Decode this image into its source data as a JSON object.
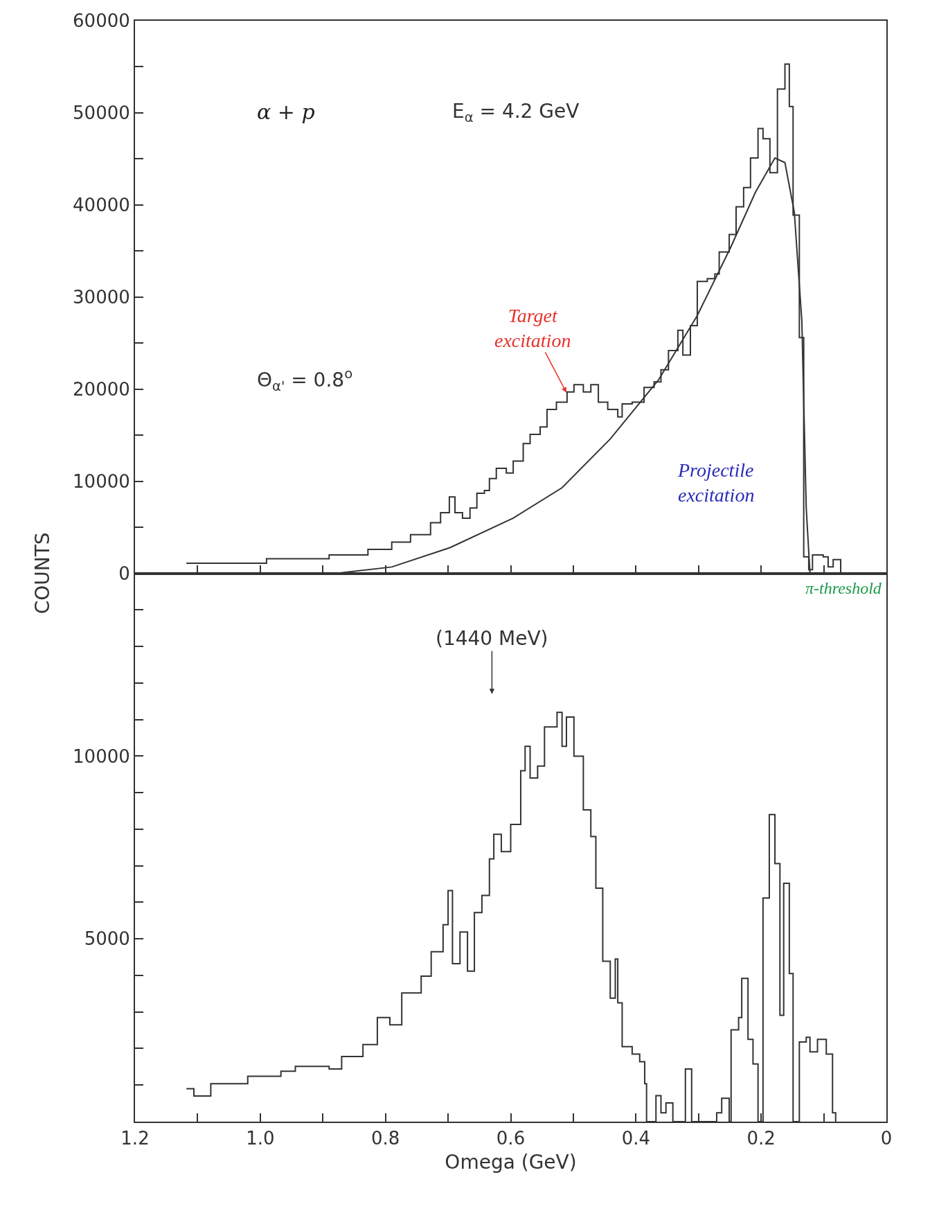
{
  "chart_data": [
    {
      "type": "step",
      "ylabel": "COUNTS",
      "xlim": [
        1.2,
        0
      ],
      "xticks": [
        1.2,
        1.1,
        1,
        0.9,
        0.8,
        0.7,
        0.6,
        0.5,
        0.4,
        0.3,
        0.2,
        0.1,
        0
      ],
      "tick_labels": "y",
      "ylim": [
        0,
        60000
      ],
      "yticks": [
        0,
        {
          "value": 5000,
          "label": null
        },
        10000,
        {
          "value": 15000,
          "label": null
        },
        20000,
        {
          "value": 25000,
          "label": null
        },
        30000,
        {
          "value": 35000,
          "label": null
        },
        40000,
        {
          "value": 45000,
          "label": null
        },
        50000,
        {
          "value": 55000,
          "label": null
        },
        60000
      ],
      "annotations": [
        "α + p",
        "E$_{α}$ = 4.2 GeV",
        "Θ$_{α'}$ = 0.8$^{o}$",
        {
          "text": "Target excitation",
          "x": 0.51,
          "y": 19500
        },
        "Projectile excitation",
        "π-threshold"
      ],
      "series": [
        {
          "color": "#333333",
          "x": [
            1.118,
            0.99,
            0.89,
            0.828,
            0.79,
            0.76,
            0.728,
            0.712,
            0.698,
            0.689,
            0.677,
            0.665,
            0.654,
            0.642,
            0.634,
            0.623,
            0.607,
            0.596,
            0.58,
            0.569,
            0.553,
            0.542,
            0.527,
            0.51,
            0.499,
            0.484,
            0.472,
            0.46,
            0.445,
            0.429,
            0.422,
            0.406,
            0.387,
            0.371,
            0.36,
            0.348,
            0.333,
            0.325,
            0.313,
            0.302,
            0.286,
            0.274,
            0.267,
            0.251,
            0.24,
            0.228,
            0.217,
            0.205,
            0.197,
            0.186,
            0.174,
            0.162,
            0.155,
            0.149,
            0.139,
            0.132,
            0.124,
            0.118,
            0.101,
            0.093,
            0.085,
            0.073
          ],
          "values": [
            1100,
            1600,
            2000,
            2600,
            3400,
            4200,
            5500,
            6600,
            8300,
            6600,
            6000,
            7100,
            8700,
            9000,
            10300,
            11400,
            10900,
            12200,
            14100,
            15100,
            15900,
            17800,
            18600,
            19700,
            20500,
            19700,
            20500,
            18600,
            17800,
            17000,
            18400,
            18600,
            20200,
            20800,
            22100,
            24200,
            26400,
            23700,
            26900,
            31700,
            32000,
            32500,
            34900,
            36800,
            39800,
            41900,
            45100,
            48300,
            47200,
            43500,
            52600,
            55300,
            50700,
            38900,
            25600,
            1800,
            400,
            2000,
            1800,
            700,
            1500,
            0
          ]
        },
        {
          "type": "line",
          "color": "#333333",
          "x": [
            0.88,
            0.79,
            0.697,
            0.596,
            0.518,
            0.441,
            0.364,
            0.302,
            0.248,
            0.209,
            0.178,
            0.162,
            0.147,
            0.135,
            0.128,
            0.122
          ],
          "values": [
            0,
            700,
            2800,
            6000,
            9300,
            14600,
            21000,
            28000,
            35500,
            41400,
            45100,
            44600,
            39200,
            27400,
            7100,
            0
          ]
        }
      ]
    },
    {
      "type": "step",
      "xlabel": "Omega (GeV)",
      "xlim": [
        1.2,
        0
      ],
      "xticks": [
        1.2,
        {
          "value": 1.1,
          "label": null
        },
        {
          "value": 1,
          "label": "1.0"
        },
        {
          "value": 0.9,
          "label": null
        },
        0.8,
        {
          "value": 0.7,
          "label": null
        },
        0.6,
        {
          "value": 0.5,
          "label": null
        },
        0.4,
        {
          "value": 0.3,
          "label": null
        },
        0.2,
        {
          "value": 0.1,
          "label": null
        },
        0
      ],
      "ylim": [
        0,
        15000
      ],
      "yticks": [
        {
          "value": 0,
          "label": null
        },
        {
          "value": 1000,
          "label": null
        },
        {
          "value": 2000,
          "label": null
        },
        {
          "value": 3000,
          "label": null
        },
        {
          "value": 4000,
          "label": null
        },
        5000,
        {
          "value": 6000,
          "label": null
        },
        {
          "value": 7000,
          "label": null
        },
        {
          "value": 8000,
          "label": null
        },
        {
          "value": 9000,
          "label": null
        },
        10000,
        {
          "value": 11000,
          "label": null
        },
        {
          "value": 12000,
          "label": null
        },
        {
          "value": 13000,
          "label": null
        },
        {
          "value": 14000,
          "label": null
        }
      ],
      "annotations": [
        "(1440 MeV)"
      ],
      "series": [
        {
          "color": "#333333",
          "x": [
            1.118,
            1.106,
            1.079,
            1.02,
            0.967,
            0.944,
            0.89,
            0.87,
            0.836,
            0.813,
            0.793,
            0.774,
            0.743,
            0.727,
            0.708,
            0.7,
            0.693,
            0.681,
            0.669,
            0.658,
            0.646,
            0.634,
            0.627,
            0.615,
            0.6,
            0.584,
            0.577,
            0.569,
            0.557,
            0.546,
            0.526,
            0.518,
            0.511,
            0.499,
            0.484,
            0.472,
            0.464,
            0.453,
            0.441,
            0.433,
            0.429,
            0.422,
            0.406,
            0.394,
            0.386,
            0.383,
            0.368,
            0.36,
            0.352,
            0.341,
            0.321,
            0.311,
            0.271,
            0.263,
            0.251,
            0.248,
            0.236,
            0.231,
            0.221,
            0.213,
            0.205,
            0.197,
            0.187,
            0.178,
            0.17,
            0.164,
            0.155,
            0.149,
            0.139,
            0.128,
            0.122,
            0.11,
            0.096,
            0.086,
            0.081
          ],
          "values": [
            900,
            700,
            1040,
            1240,
            1380,
            1510,
            1440,
            1780,
            2110,
            2850,
            2650,
            3520,
            3980,
            4650,
            5390,
            6320,
            4320,
            5190,
            4120,
            5720,
            6190,
            7190,
            7860,
            7390,
            8130,
            9600,
            10270,
            9400,
            9730,
            10800,
            11200,
            10270,
            11070,
            10000,
            8530,
            7800,
            6390,
            4390,
            3380,
            4450,
            3250,
            2050,
            1850,
            1640,
            1040,
            0,
            710,
            240,
            510,
            0,
            1440,
            0,
            240,
            640,
            0,
            2510,
            2850,
            3920,
            2250,
            1580,
            0,
            6120,
            8400,
            7060,
            2910,
            6520,
            4050,
            0,
            2180,
            2310,
            1910,
            2250,
            1850,
            240,
            0
          ]
        }
      ]
    }
  ]
}
